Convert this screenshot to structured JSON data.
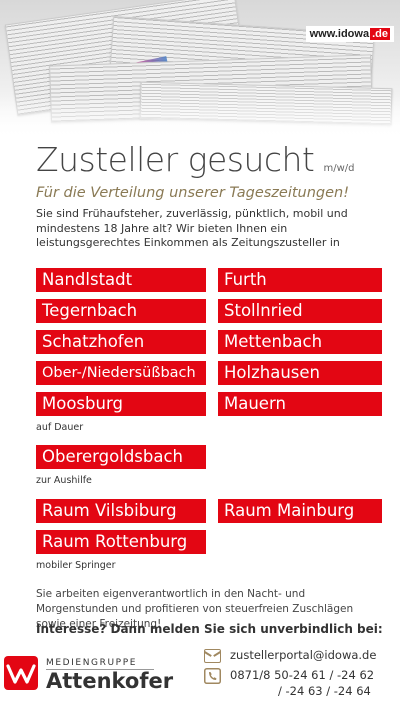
{
  "header": {
    "url_main": "www.idowa",
    "url_tld": ".de"
  },
  "headline": {
    "main": "Zusteller gesucht",
    "suffix": "m/w/d"
  },
  "subheadline": "Für die Verteilung unserer Tageszeitungen!",
  "intro": "Sie sind Frühaufsteher, zuverlässig, pünktlich, mobil und mindestens 18 Jahre alt? Wir bieten Ihnen ein leistungsgerechtes Einkommen als Zeitungszusteller in",
  "locations_permanent": {
    "left": [
      "Nandlstadt",
      "Tegernbach",
      "Schatzhofen",
      "Ober-/Niedersüßbach",
      "Moosburg"
    ],
    "right": [
      "Furth",
      "Stollnried",
      "Mettenbach",
      "Holzhausen",
      "Mauern"
    ],
    "note": "auf Dauer"
  },
  "locations_temp": {
    "items": [
      "Oberergoldsbach"
    ],
    "note": "zur Aushilfe"
  },
  "locations_mobile": {
    "items": [
      "Raum Vilsbiburg",
      "Raum Mainburg",
      "Raum Rottenburg"
    ],
    "note": "mobiler Springer"
  },
  "body_text": "Sie arbeiten eigenverantwortlich in den Nacht- und Morgenstunden und profitieren von steuerfreien Zuschlägen sowie einer Freizeitung!",
  "cta": "Interesse? Dann melden Sie sich unverbindlich bei:",
  "logo": {
    "line1": "MEDIENGRUPPE",
    "line2": "Attenkofer"
  },
  "contact": {
    "email": "zustellerportal@idowa.de",
    "phone_line1": "0871/8 50-24 61 / -24 62",
    "phone_line2": "/ -24 63 / -24 64"
  },
  "colors": {
    "accent_red": "#e30613",
    "subheadline_gold": "#8a7a55"
  },
  "icons": [
    "newspaper-photo",
    "mail-icon",
    "phone-icon",
    "attenkofer-logo-mark"
  ]
}
